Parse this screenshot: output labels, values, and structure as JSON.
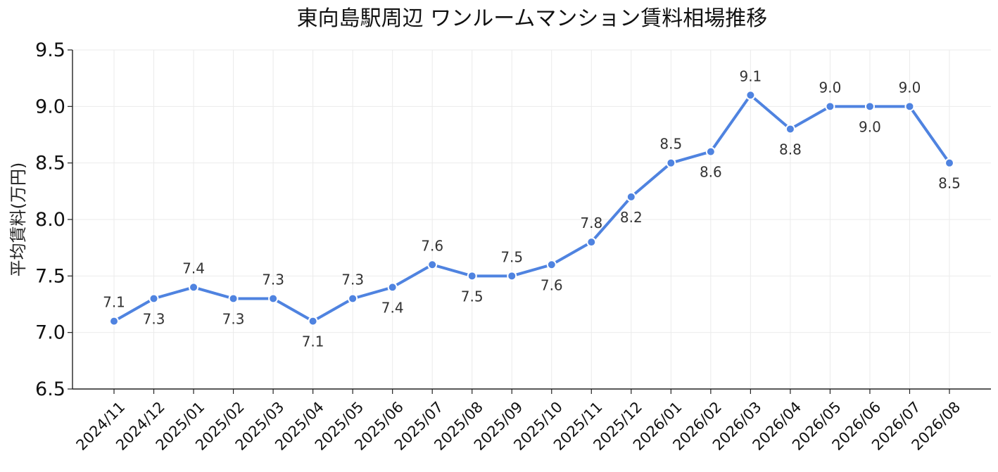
{
  "chart_data": {
    "type": "line",
    "title": "東向島駅周辺 ワンルームマンション賃料相場推移",
    "xlabel": "",
    "ylabel": "平均賃料(万円)",
    "categories": [
      "2024/11",
      "2024/12",
      "2025/01",
      "2025/02",
      "2025/03",
      "2025/04",
      "2025/05",
      "2025/06",
      "2025/07",
      "2025/08",
      "2025/09",
      "2025/10",
      "2025/11",
      "2025/12",
      "2026/01",
      "2026/02",
      "2026/03",
      "2026/04",
      "2026/05",
      "2026/06",
      "2026/07",
      "2026/08"
    ],
    "series": [
      {
        "values": [
          7.1,
          7.3,
          7.4,
          7.3,
          7.3,
          7.1,
          7.3,
          7.4,
          7.6,
          7.5,
          7.5,
          7.6,
          7.8,
          8.2,
          8.5,
          8.6,
          9.1,
          8.8,
          9.0,
          9.0,
          9.0,
          8.5
        ],
        "data_labels": [
          "7.1",
          "7.3",
          "7.4",
          "7.3",
          "7.3",
          "7.1",
          "7.3",
          "7.4",
          "7.6",
          "7.5",
          "7.5",
          "7.6",
          "7.8",
          "8.2",
          "8.5",
          "8.6",
          "9.1",
          "8.8",
          "9.0",
          "9.0",
          "9.0",
          "8.5"
        ],
        "label_positions": [
          "above",
          "below",
          "above",
          "below",
          "above",
          "below",
          "above",
          "below",
          "above",
          "below",
          "above",
          "below",
          "above",
          "below",
          "above",
          "below",
          "above",
          "below",
          "above",
          "below",
          "above",
          "below"
        ]
      }
    ],
    "ylim": [
      6.5,
      9.5
    ],
    "yticks": [
      6.5,
      7.0,
      7.5,
      8.0,
      8.5,
      9.0,
      9.5
    ],
    "ytick_labels": [
      "6.5",
      "7.0",
      "7.5",
      "8.0",
      "8.5",
      "9.0",
      "9.5"
    ],
    "grid": true,
    "line_color": "#4f83e0"
  }
}
